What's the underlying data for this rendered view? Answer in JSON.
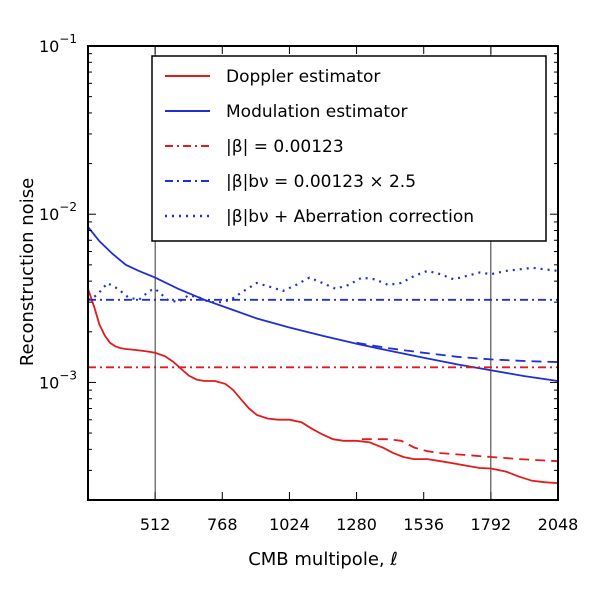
{
  "chart_data": {
    "type": "line",
    "title": "",
    "xlabel": "CMB multipole, ℓ",
    "ylabel": "Reconstruction noise",
    "xscale": "linear",
    "yscale": "log",
    "xlim": [
      256,
      2048
    ],
    "ylim": [
      0.0002,
      0.1
    ],
    "x_ticks": [
      512,
      768,
      1024,
      1280,
      1536,
      1792,
      2048
    ],
    "x_tick_labels": [
      "512",
      "768",
      "1024",
      "1280",
      "1536",
      "1792",
      "2048"
    ],
    "y_ticks": [
      {
        "value": 0.1,
        "base": "10",
        "exp": "−1"
      },
      {
        "value": 0.01,
        "base": "10",
        "exp": "−2"
      },
      {
        "value": 0.001,
        "base": "10",
        "exp": "−3"
      }
    ],
    "vlines": [
      512,
      1792
    ],
    "legend_position": "upper-right",
    "colors": {
      "red": "#e31a1c",
      "blue": "#1f2fd4"
    },
    "series": [
      {
        "name": "Doppler estimator",
        "legend_label": "Doppler estimator",
        "color": "#e31a1c",
        "style": "solid",
        "points": [
          [
            256,
            0.0036
          ],
          [
            280,
            0.0028
          ],
          [
            300,
            0.0022
          ],
          [
            320,
            0.0019
          ],
          [
            340,
            0.00172
          ],
          [
            360,
            0.00164
          ],
          [
            380,
            0.0016
          ],
          [
            400,
            0.00158
          ],
          [
            420,
            0.00157
          ],
          [
            450,
            0.00155
          ],
          [
            480,
            0.00153
          ],
          [
            512,
            0.0015
          ],
          [
            550,
            0.00143
          ],
          [
            580,
            0.00133
          ],
          [
            610,
            0.00121
          ],
          [
            640,
            0.0011
          ],
          [
            670,
            0.00104
          ],
          [
            700,
            0.00102
          ],
          [
            740,
            0.00102
          ],
          [
            780,
            0.00098
          ],
          [
            810,
            0.0009
          ],
          [
            840,
            0.00079
          ],
          [
            870,
            0.0007
          ],
          [
            900,
            0.00064
          ],
          [
            940,
            0.00061
          ],
          [
            980,
            0.0006
          ],
          [
            1024,
            0.0006
          ],
          [
            1070,
            0.00058
          ],
          [
            1110,
            0.00053
          ],
          [
            1150,
            0.00049
          ],
          [
            1190,
            0.00046
          ],
          [
            1230,
            0.00045
          ],
          [
            1280,
            0.00045
          ],
          [
            1330,
            0.00044
          ],
          [
            1380,
            0.00041
          ],
          [
            1420,
            0.00038
          ],
          [
            1460,
            0.00036
          ],
          [
            1500,
            0.00035
          ],
          [
            1550,
            0.00035
          ],
          [
            1600,
            0.00034
          ],
          [
            1650,
            0.00033
          ],
          [
            1700,
            0.00032
          ],
          [
            1750,
            0.00031
          ],
          [
            1792,
            0.000308
          ],
          [
            1850,
            0.000295
          ],
          [
            1900,
            0.000275
          ],
          [
            1950,
            0.00026
          ],
          [
            2000,
            0.000255
          ],
          [
            2048,
            0.000252
          ]
        ]
      },
      {
        "name": "Modulation estimator",
        "legend_label": "Modulation estimator",
        "color": "#1f2fd4",
        "style": "solid",
        "points": [
          [
            256,
            0.0084
          ],
          [
            300,
            0.0069
          ],
          [
            350,
            0.0058
          ],
          [
            400,
            0.005
          ],
          [
            450,
            0.0046
          ],
          [
            512,
            0.0042
          ],
          [
            600,
            0.0036
          ],
          [
            700,
            0.0031
          ],
          [
            800,
            0.00273
          ],
          [
            900,
            0.0024
          ],
          [
            1024,
            0.00212
          ],
          [
            1152,
            0.00189
          ],
          [
            1280,
            0.0017
          ],
          [
            1408,
            0.00154
          ],
          [
            1536,
            0.0014
          ],
          [
            1664,
            0.00128
          ],
          [
            1792,
            0.00118
          ],
          [
            1920,
            0.00109
          ],
          [
            2048,
            0.00102
          ]
        ]
      },
      {
        "name": "|β| = 0.00123",
        "legend_label": "|β| = 0.00123",
        "color": "#e31a1c",
        "style": "dashdot",
        "points": [
          [
            256,
            0.00123
          ],
          [
            2048,
            0.00123
          ]
        ]
      },
      {
        "name": "|β|bν = 0.00123 × 2.5",
        "legend_label": "|β|bν = 0.00123 × 2.5",
        "color": "#1f2fd4",
        "style": "dashdot",
        "points": [
          [
            256,
            0.0031
          ],
          [
            2048,
            0.0031
          ]
        ]
      },
      {
        "name": "|β|bν + Aberration correction",
        "legend_label": "|β|bν + Aberration correction",
        "color": "#1f2fd4",
        "style": "dotted",
        "points": [
          [
            256,
            0.0031
          ],
          [
            290,
            0.0033
          ],
          [
            330,
            0.0039
          ],
          [
            370,
            0.0036
          ],
          [
            410,
            0.0032
          ],
          [
            450,
            0.0031
          ],
          [
            490,
            0.0035
          ],
          [
            512,
            0.0036
          ],
          [
            560,
            0.0031
          ],
          [
            600,
            0.003
          ],
          [
            640,
            0.0033
          ],
          [
            680,
            0.0032
          ],
          [
            720,
            0.003
          ],
          [
            760,
            0.003
          ],
          [
            800,
            0.0031
          ],
          [
            850,
            0.0035
          ],
          [
            900,
            0.0039
          ],
          [
            950,
            0.0037
          ],
          [
            1000,
            0.0035
          ],
          [
            1050,
            0.0038
          ],
          [
            1100,
            0.0042
          ],
          [
            1150,
            0.0039
          ],
          [
            1200,
            0.0036
          ],
          [
            1250,
            0.0038
          ],
          [
            1300,
            0.0042
          ],
          [
            1350,
            0.0041
          ],
          [
            1400,
            0.0038
          ],
          [
            1450,
            0.0039
          ],
          [
            1500,
            0.0043
          ],
          [
            1550,
            0.0046
          ],
          [
            1600,
            0.0044
          ],
          [
            1650,
            0.0041
          ],
          [
            1700,
            0.0043
          ],
          [
            1750,
            0.0045
          ],
          [
            1792,
            0.0044
          ],
          [
            1850,
            0.0046
          ],
          [
            1900,
            0.0047
          ],
          [
            1950,
            0.0048
          ],
          [
            2000,
            0.0047
          ],
          [
            2048,
            0.0046
          ]
        ]
      },
      {
        "name": "Doppler estimator (dashed)",
        "color": "#e31a1c",
        "style": "dashed",
        "points": [
          [
            1300,
            0.00046
          ],
          [
            1400,
            0.00046
          ],
          [
            1450,
            0.00045
          ],
          [
            1500,
            0.00041
          ],
          [
            1550,
            0.00039
          ],
          [
            1600,
            0.00038
          ],
          [
            1700,
            0.00037
          ],
          [
            1800,
            0.00036
          ],
          [
            1900,
            0.00035
          ],
          [
            2048,
            0.00034
          ]
        ]
      },
      {
        "name": "Modulation estimator (dashed)",
        "color": "#1f2fd4",
        "style": "dashed",
        "points": [
          [
            1280,
            0.00172
          ],
          [
            1400,
            0.0016
          ],
          [
            1536,
            0.0015
          ],
          [
            1664,
            0.00142
          ],
          [
            1792,
            0.00137
          ],
          [
            1920,
            0.00134
          ],
          [
            2048,
            0.00132
          ]
        ]
      }
    ]
  }
}
